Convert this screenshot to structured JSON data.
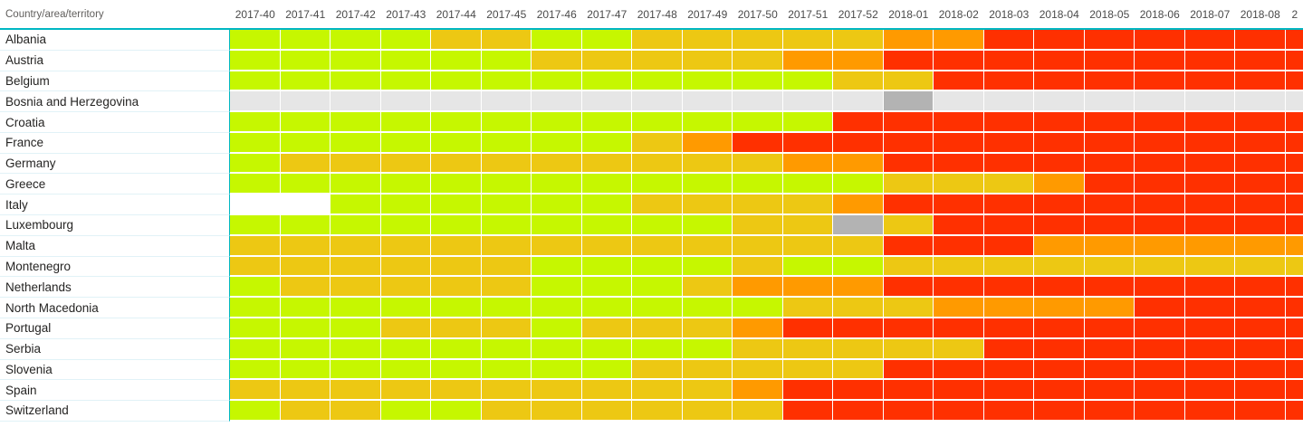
{
  "header": {
    "corner_label": "Country/area/territory",
    "columns": [
      "2017-40",
      "2017-41",
      "2017-42",
      "2017-43",
      "2017-44",
      "2017-45",
      "2017-46",
      "2017-47",
      "2017-48",
      "2017-49",
      "2017-50",
      "2017-51",
      "2017-52",
      "2018-01",
      "2018-02",
      "2018-03",
      "2018-04",
      "2018-05",
      "2018-06",
      "2018-07",
      "2018-08"
    ],
    "partial_column_label": "2"
  },
  "palette": {
    "g": "#c6f700",
    "y": "#edc813",
    "o": "#ff9a00",
    "r": "#ff3000",
    "lg": "#e6e6e6",
    "dg": "#b3b3b3",
    "w": "#ffffff"
  },
  "palette_names": {
    "g": "green-low",
    "y": "yellow-medium",
    "o": "orange-high",
    "r": "red-very-high",
    "lg": "gray-no-data",
    "dg": "gray-dark-no-report",
    "w": "white-empty"
  },
  "accent": {
    "header_line": "#00b7c3",
    "row_separator": "#e1f2f7"
  },
  "rows": [
    {
      "label": "Albania",
      "cells": [
        "g",
        "g",
        "g",
        "g",
        "y",
        "y",
        "g",
        "g",
        "y",
        "y",
        "y",
        "y",
        "y",
        "o",
        "o",
        "r",
        "r",
        "r",
        "r",
        "r",
        "r",
        "r"
      ]
    },
    {
      "label": "Austria",
      "cells": [
        "g",
        "g",
        "g",
        "g",
        "g",
        "g",
        "y",
        "y",
        "y",
        "y",
        "y",
        "o",
        "o",
        "r",
        "r",
        "r",
        "r",
        "r",
        "r",
        "r",
        "r",
        "r"
      ]
    },
    {
      "label": "Belgium",
      "cells": [
        "g",
        "g",
        "g",
        "g",
        "g",
        "g",
        "g",
        "g",
        "g",
        "g",
        "g",
        "g",
        "y",
        "y",
        "r",
        "r",
        "r",
        "r",
        "r",
        "r",
        "r",
        "r"
      ]
    },
    {
      "label": "Bosnia and Herzegovina",
      "cells": [
        "lg",
        "lg",
        "lg",
        "lg",
        "lg",
        "lg",
        "lg",
        "lg",
        "lg",
        "lg",
        "lg",
        "lg",
        "lg",
        "dg",
        "lg",
        "lg",
        "lg",
        "lg",
        "lg",
        "lg",
        "lg",
        "lg"
      ]
    },
    {
      "label": "Croatia",
      "cells": [
        "g",
        "g",
        "g",
        "g",
        "g",
        "g",
        "g",
        "g",
        "g",
        "g",
        "g",
        "g",
        "r",
        "r",
        "r",
        "r",
        "r",
        "r",
        "r",
        "r",
        "r",
        "r"
      ]
    },
    {
      "label": "France",
      "cells": [
        "g",
        "g",
        "g",
        "g",
        "g",
        "g",
        "g",
        "g",
        "y",
        "o",
        "r",
        "r",
        "r",
        "r",
        "r",
        "r",
        "r",
        "r",
        "r",
        "r",
        "r",
        "r"
      ]
    },
    {
      "label": "Germany",
      "cells": [
        "g",
        "y",
        "y",
        "y",
        "y",
        "y",
        "y",
        "y",
        "y",
        "y",
        "y",
        "o",
        "o",
        "r",
        "r",
        "r",
        "r",
        "r",
        "r",
        "r",
        "r",
        "r"
      ]
    },
    {
      "label": "Greece",
      "cells": [
        "g",
        "g",
        "g",
        "g",
        "g",
        "g",
        "g",
        "g",
        "g",
        "g",
        "g",
        "g",
        "g",
        "y",
        "y",
        "y",
        "o",
        "r",
        "r",
        "r",
        "r",
        "r"
      ]
    },
    {
      "label": "Italy",
      "cells": [
        "w",
        "w",
        "g",
        "g",
        "g",
        "g",
        "g",
        "g",
        "y",
        "y",
        "y",
        "y",
        "o",
        "r",
        "r",
        "r",
        "r",
        "r",
        "r",
        "r",
        "r",
        "r"
      ]
    },
    {
      "label": "Luxembourg",
      "cells": [
        "g",
        "g",
        "g",
        "g",
        "g",
        "g",
        "g",
        "g",
        "g",
        "g",
        "y",
        "y",
        "dg",
        "y",
        "r",
        "r",
        "r",
        "r",
        "r",
        "r",
        "r",
        "r"
      ]
    },
    {
      "label": "Malta",
      "cells": [
        "y",
        "y",
        "y",
        "y",
        "y",
        "y",
        "y",
        "y",
        "y",
        "y",
        "y",
        "y",
        "y",
        "r",
        "r",
        "r",
        "o",
        "o",
        "o",
        "o",
        "o",
        "o"
      ]
    },
    {
      "label": "Montenegro",
      "cells": [
        "y",
        "y",
        "y",
        "y",
        "y",
        "y",
        "g",
        "g",
        "g",
        "g",
        "y",
        "g",
        "g",
        "y",
        "y",
        "y",
        "y",
        "y",
        "y",
        "y",
        "y",
        "y"
      ]
    },
    {
      "label": "Netherlands",
      "cells": [
        "g",
        "y",
        "y",
        "y",
        "y",
        "y",
        "g",
        "g",
        "g",
        "y",
        "o",
        "o",
        "o",
        "r",
        "r",
        "r",
        "r",
        "r",
        "r",
        "r",
        "r",
        "r"
      ]
    },
    {
      "label": "North Macedonia",
      "cells": [
        "g",
        "g",
        "g",
        "g",
        "g",
        "g",
        "g",
        "g",
        "g",
        "g",
        "g",
        "y",
        "y",
        "y",
        "o",
        "o",
        "o",
        "o",
        "r",
        "r",
        "r",
        "r"
      ]
    },
    {
      "label": "Portugal",
      "cells": [
        "g",
        "g",
        "g",
        "y",
        "y",
        "y",
        "g",
        "y",
        "y",
        "y",
        "o",
        "r",
        "r",
        "r",
        "r",
        "r",
        "r",
        "r",
        "r",
        "r",
        "r",
        "r"
      ]
    },
    {
      "label": "Serbia",
      "cells": [
        "g",
        "g",
        "g",
        "g",
        "g",
        "g",
        "g",
        "g",
        "g",
        "g",
        "y",
        "y",
        "y",
        "y",
        "y",
        "r",
        "r",
        "r",
        "r",
        "r",
        "r",
        "r"
      ]
    },
    {
      "label": "Slovenia",
      "cells": [
        "g",
        "g",
        "g",
        "g",
        "g",
        "g",
        "g",
        "g",
        "y",
        "y",
        "y",
        "y",
        "y",
        "r",
        "r",
        "r",
        "r",
        "r",
        "r",
        "r",
        "r",
        "r"
      ]
    },
    {
      "label": "Spain",
      "cells": [
        "y",
        "y",
        "y",
        "y",
        "y",
        "y",
        "y",
        "y",
        "y",
        "y",
        "o",
        "r",
        "r",
        "r",
        "r",
        "r",
        "r",
        "r",
        "r",
        "r",
        "r",
        "r"
      ]
    },
    {
      "label": "Switzerland",
      "cells": [
        "g",
        "y",
        "y",
        "g",
        "g",
        "y",
        "y",
        "y",
        "y",
        "y",
        "y",
        "r",
        "r",
        "r",
        "r",
        "r",
        "r",
        "r",
        "r",
        "r",
        "r",
        "r"
      ]
    }
  ]
}
